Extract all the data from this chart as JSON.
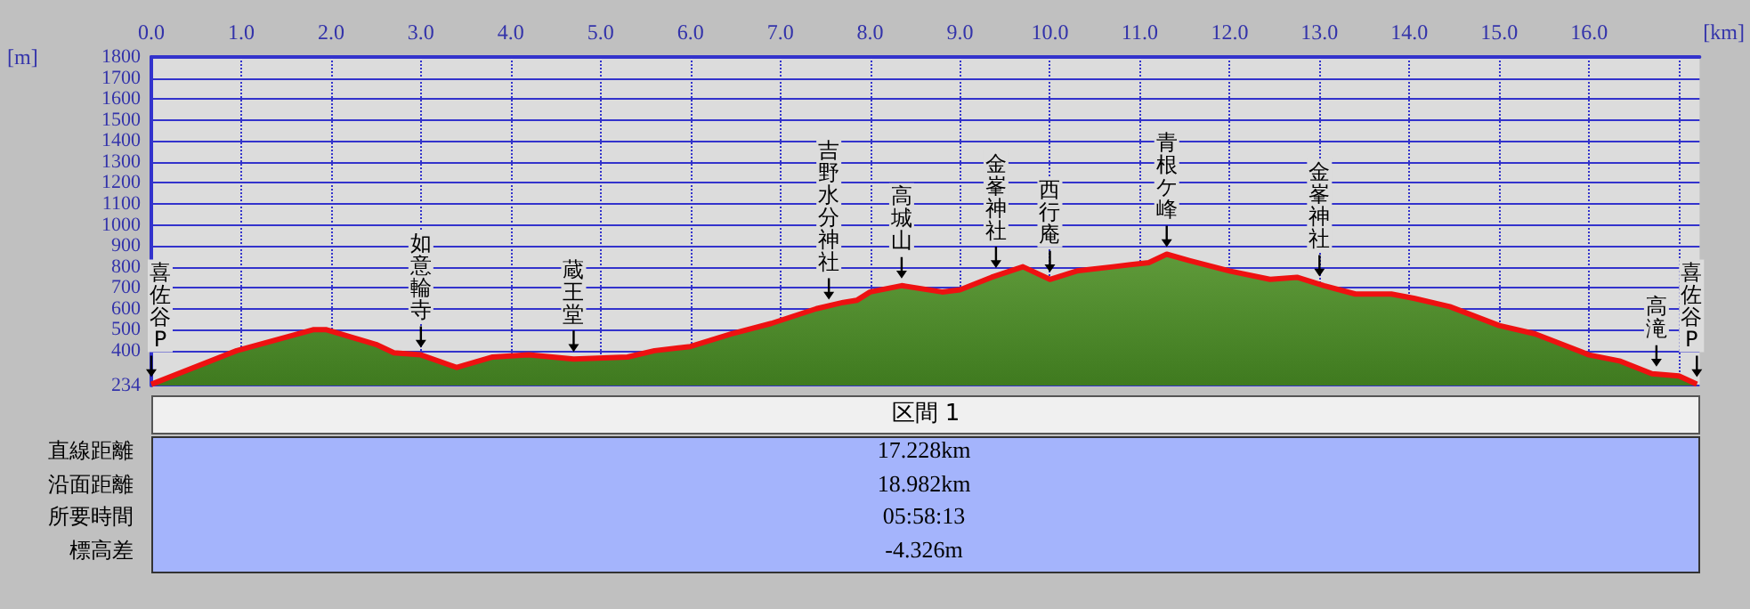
{
  "chart_data": {
    "type": "area",
    "xlabel": "[km]",
    "ylabel": "[m]",
    "x": [
      0,
      0.95,
      1.8,
      1.95,
      2.5,
      2.7,
      3.0,
      3.4,
      3.8,
      4.2,
      4.7,
      5.3,
      5.6,
      6.0,
      6.45,
      6.9,
      7.4,
      7.7,
      7.85,
      8.0,
      8.35,
      8.8,
      9.0,
      9.35,
      9.7,
      10.0,
      10.3,
      10.7,
      11.1,
      11.3,
      11.55,
      12.0,
      12.45,
      12.75,
      13.05,
      13.4,
      13.8,
      14.05,
      14.45,
      15.0,
      15.4,
      16.0,
      16.35,
      16.7,
      17.0,
      17.2
    ],
    "series": [
      {
        "color": "#ee1111",
        "values": [
          240,
          400,
          500,
          500,
          430,
          390,
          380,
          320,
          370,
          380,
          360,
          370,
          400,
          420,
          480,
          530,
          600,
          630,
          640,
          680,
          710,
          680,
          690,
          750,
          800,
          740,
          780,
          800,
          820,
          860,
          830,
          780,
          740,
          750,
          710,
          670,
          670,
          650,
          610,
          520,
          480,
          380,
          350,
          290,
          280,
          240
        ]
      }
    ],
    "xlim": [
      0,
      17.23
    ],
    "ylim": [
      234,
      1800
    ],
    "xticks": [
      {
        "value": 0,
        "label": "0.0"
      },
      {
        "value": 1,
        "label": "1.0"
      },
      {
        "value": 2,
        "label": "2.0"
      },
      {
        "value": 3,
        "label": "3.0"
      },
      {
        "value": 4,
        "label": "4.0"
      },
      {
        "value": 5,
        "label": "5.0"
      },
      {
        "value": 6,
        "label": "6.0"
      },
      {
        "value": 7,
        "label": "7.0"
      },
      {
        "value": 8,
        "label": "8.0"
      },
      {
        "value": 9,
        "label": "9.0"
      },
      {
        "value": 10,
        "label": "10.0"
      },
      {
        "value": 11,
        "label": "11.0"
      },
      {
        "value": 12,
        "label": "12.0"
      },
      {
        "value": 13,
        "label": "13.0"
      },
      {
        "value": 14,
        "label": "14.0"
      },
      {
        "value": 15,
        "label": "15.0"
      },
      {
        "value": 16,
        "label": "16.0"
      },
      {
        "value": 17,
        "label": null
      }
    ],
    "yticks": [
      234,
      400,
      500,
      600,
      700,
      800,
      900,
      1000,
      1100,
      1200,
      1300,
      1400,
      1500,
      1600,
      1700,
      1800
    ],
    "grid": true,
    "annotations": [
      {
        "text": "喜佐谷P",
        "x": 0,
        "y": 240
      },
      {
        "text": "如意輪寺",
        "x": 3.0,
        "y": 380
      },
      {
        "text": "蔵王堂",
        "x": 4.7,
        "y": 360
      },
      {
        "text": "吉野水分神社",
        "x": 7.54,
        "y": 610
      },
      {
        "text": "高城山",
        "x": 8.35,
        "y": 710
      },
      {
        "text": "金峯神社",
        "x": 9.4,
        "y": 760
      },
      {
        "text": "西行庵",
        "x": 10.0,
        "y": 740
      },
      {
        "text": "青根ケ峰",
        "x": 11.3,
        "y": 860
      },
      {
        "text": "金峯神社",
        "x": 13.0,
        "y": 720
      },
      {
        "text": "高滝",
        "x": 16.75,
        "y": 290
      },
      {
        "text": "喜佐谷P",
        "x": 17.2,
        "y": 240
      },
      "区間 1",
      "直線距離",
      "17.228km",
      "沿面距離",
      "18.982km",
      "所要時間",
      "05:58:13",
      "標高差",
      "-4.326m"
    ]
  }
}
